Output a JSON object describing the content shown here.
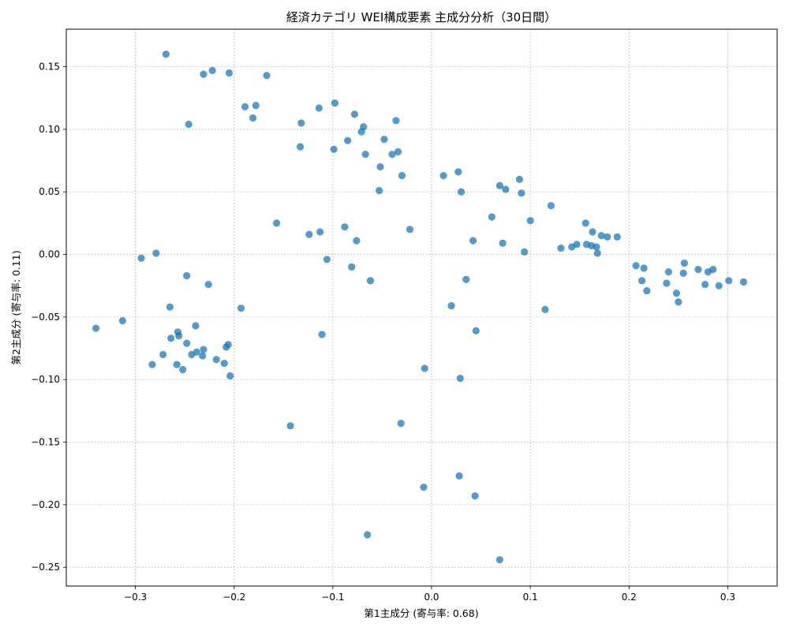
{
  "chart_data": {
    "type": "scatter",
    "title": "経済カテゴリ WEI構成要素 主成分分析（30日間）",
    "xlabel": "第1主成分 (寄与率: 0.68)",
    "ylabel": "第2主成分 (寄与率: 0.11)",
    "xlim": [
      -0.37,
      0.35
    ],
    "ylim": [
      -0.265,
      0.18
    ],
    "xticks": [
      -0.3,
      -0.2,
      -0.1,
      0.0,
      0.1,
      0.2,
      0.3
    ],
    "yticks": [
      -0.25,
      -0.2,
      -0.15,
      -0.1,
      -0.05,
      0.0,
      0.05,
      0.1,
      0.15
    ],
    "xtick_labels": [
      "−0.3",
      "−0.2",
      "−0.1",
      "0.0",
      "0.1",
      "0.2",
      "0.3"
    ],
    "ytick_labels": [
      "−0.25",
      "−0.20",
      "−0.15",
      "−0.10",
      "−0.05",
      "0.00",
      "0.05",
      "0.10",
      "0.15"
    ],
    "grid": true,
    "legend": false,
    "marker_color": "#1f77b4",
    "points": [
      [
        -0.269,
        0.16
      ],
      [
        -0.231,
        0.144
      ],
      [
        -0.222,
        0.147
      ],
      [
        -0.205,
        0.145
      ],
      [
        -0.167,
        0.143
      ],
      [
        -0.189,
        0.118
      ],
      [
        -0.178,
        0.119
      ],
      [
        -0.181,
        0.109
      ],
      [
        -0.246,
        0.104
      ],
      [
        -0.132,
        0.105
      ],
      [
        -0.114,
        0.117
      ],
      [
        -0.098,
        0.121
      ],
      [
        -0.078,
        0.112
      ],
      [
        -0.069,
        0.102
      ],
      [
        -0.071,
        0.098
      ],
      [
        -0.036,
        0.107
      ],
      [
        -0.048,
        0.092
      ],
      [
        -0.085,
        0.091
      ],
      [
        -0.133,
        0.086
      ],
      [
        -0.099,
        0.084
      ],
      [
        -0.067,
        0.08
      ],
      [
        -0.04,
        0.08
      ],
      [
        -0.034,
        0.082
      ],
      [
        -0.052,
        0.07
      ],
      [
        -0.03,
        0.063
      ],
      [
        -0.053,
        0.051
      ],
      [
        0.012,
        0.063
      ],
      [
        0.027,
        0.066
      ],
      [
        0.03,
        0.05
      ],
      [
        0.069,
        0.055
      ],
      [
        0.075,
        0.052
      ],
      [
        0.089,
        0.06
      ],
      [
        0.091,
        0.049
      ],
      [
        0.121,
        0.039
      ],
      [
        0.061,
        0.03
      ],
      [
        0.1,
        0.027
      ],
      [
        0.156,
        0.025
      ],
      [
        -0.157,
        0.025
      ],
      [
        -0.022,
        0.02
      ],
      [
        -0.088,
        0.022
      ],
      [
        -0.113,
        0.018
      ],
      [
        -0.124,
        0.016
      ],
      [
        -0.076,
        0.011
      ],
      [
        0.042,
        0.011
      ],
      [
        0.072,
        0.009
      ],
      [
        0.094,
        0.002
      ],
      [
        0.131,
        0.005
      ],
      [
        0.142,
        0.006
      ],
      [
        0.147,
        0.008
      ],
      [
        0.157,
        0.008
      ],
      [
        0.163,
        0.018
      ],
      [
        0.172,
        0.015
      ],
      [
        0.178,
        0.014
      ],
      [
        0.188,
        0.014
      ],
      [
        0.162,
        0.007
      ],
      [
        0.167,
        0.006
      ],
      [
        0.168,
        0.001
      ],
      [
        -0.279,
        0.001
      ],
      [
        -0.294,
        -0.003
      ],
      [
        -0.106,
        -0.004
      ],
      [
        -0.081,
        -0.01
      ],
      [
        -0.062,
        -0.021
      ],
      [
        0.035,
        -0.02
      ],
      [
        0.02,
        -0.041
      ],
      [
        0.115,
        -0.044
      ],
      [
        0.207,
        -0.009
      ],
      [
        0.215,
        -0.011
      ],
      [
        0.213,
        -0.021
      ],
      [
        0.218,
        -0.029
      ],
      [
        0.238,
        -0.023
      ],
      [
        0.24,
        -0.014
      ],
      [
        0.248,
        -0.031
      ],
      [
        0.25,
        -0.038
      ],
      [
        0.256,
        -0.007
      ],
      [
        0.255,
        -0.015
      ],
      [
        0.27,
        -0.012
      ],
      [
        0.277,
        -0.024
      ],
      [
        0.28,
        -0.014
      ],
      [
        0.285,
        -0.012
      ],
      [
        0.291,
        -0.025
      ],
      [
        0.301,
        -0.021
      ],
      [
        0.316,
        -0.022
      ],
      [
        -0.248,
        -0.017
      ],
      [
        -0.226,
        -0.024
      ],
      [
        -0.265,
        -0.042
      ],
      [
        -0.193,
        -0.043
      ],
      [
        -0.34,
        -0.059
      ],
      [
        -0.313,
        -0.053
      ],
      [
        -0.239,
        -0.057
      ],
      [
        -0.257,
        -0.062
      ],
      [
        -0.256,
        -0.065
      ],
      [
        -0.264,
        -0.067
      ],
      [
        -0.248,
        -0.071
      ],
      [
        -0.206,
        -0.072
      ],
      [
        -0.208,
        -0.074
      ],
      [
        -0.231,
        -0.076
      ],
      [
        -0.238,
        -0.078
      ],
      [
        -0.243,
        -0.08
      ],
      [
        -0.232,
        -0.081
      ],
      [
        -0.272,
        -0.08
      ],
      [
        -0.218,
        -0.084
      ],
      [
        -0.21,
        -0.087
      ],
      [
        -0.283,
        -0.088
      ],
      [
        -0.258,
        -0.088
      ],
      [
        -0.252,
        -0.092
      ],
      [
        -0.204,
        -0.097
      ],
      [
        -0.111,
        -0.064
      ],
      [
        0.045,
        -0.061
      ],
      [
        -0.007,
        -0.091
      ],
      [
        0.029,
        -0.099
      ],
      [
        -0.031,
        -0.135
      ],
      [
        -0.143,
        -0.137
      ],
      [
        0.028,
        -0.177
      ],
      [
        -0.008,
        -0.186
      ],
      [
        0.044,
        -0.193
      ],
      [
        -0.065,
        -0.224
      ],
      [
        0.069,
        -0.244
      ]
    ]
  }
}
